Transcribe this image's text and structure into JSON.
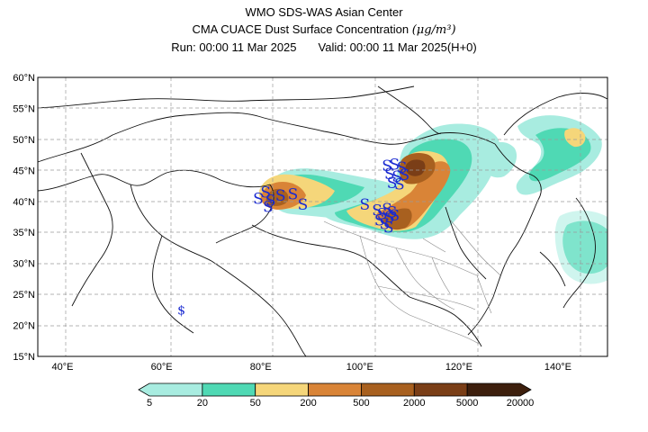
{
  "header": {
    "line1": "WMO SDS-WAS Asian Center",
    "line2": "CMA CUACE Dust Surface Concentration",
    "unit": "(μg/m³)",
    "run_label": "Run: 00:00 11 Mar 2025",
    "valid_label": "Valid: 00:00 11 Mar 2025(H+0)"
  },
  "axes": {
    "lat_ticks": [
      "60°N",
      "55°N",
      "50°N",
      "45°N",
      "40°N",
      "35°N",
      "30°N",
      "25°N",
      "20°N",
      "15°N"
    ],
    "lat_values": [
      60,
      55,
      50,
      45,
      40,
      35,
      30,
      25,
      20,
      15
    ],
    "lon_ticks": [
      "40°E",
      "60°E",
      "80°E",
      "100°E",
      "120°E",
      "140°E"
    ],
    "lon_values": [
      40,
      60,
      80,
      100,
      120,
      140
    ],
    "lon_range": [
      35,
      150
    ],
    "lat_range": [
      15,
      60
    ],
    "grid": true
  },
  "colorbar": {
    "labels": [
      "5",
      "20",
      "50",
      "200",
      "500",
      "2000",
      "5000",
      "20000"
    ],
    "colors": [
      "#a8ece0",
      "#4fd9b4",
      "#f5d67a",
      "#d98437",
      "#a8601f",
      "#7a3e17",
      "#3d1f0d"
    ]
  },
  "dust_markers": {
    "symbol": "S",
    "points": [
      [
        79.5,
        40.5
      ],
      [
        81,
        41.5
      ],
      [
        82,
        40.2
      ],
      [
        84,
        41
      ],
      [
        86.5,
        41.2
      ],
      [
        88.5,
        39.5
      ],
      [
        81.5,
        39.2
      ],
      [
        101,
        39.5
      ],
      [
        103.5,
        38.6
      ],
      [
        104.5,
        38
      ],
      [
        105.5,
        38.8
      ],
      [
        106,
        37.5
      ],
      [
        106.5,
        38.3
      ],
      [
        107,
        37.8
      ],
      [
        104,
        37
      ],
      [
        105,
        36.4
      ],
      [
        105.8,
        35.8
      ],
      [
        105.5,
        45.8
      ],
      [
        107,
        46
      ],
      [
        108.5,
        45.5
      ],
      [
        106,
        44.5
      ],
      [
        107.5,
        44
      ],
      [
        109,
        44.3
      ],
      [
        106.5,
        43
      ],
      [
        108,
        42.8
      ]
    ],
    "dollar_points": [
      [
        64,
        22.5
      ]
    ]
  }
}
